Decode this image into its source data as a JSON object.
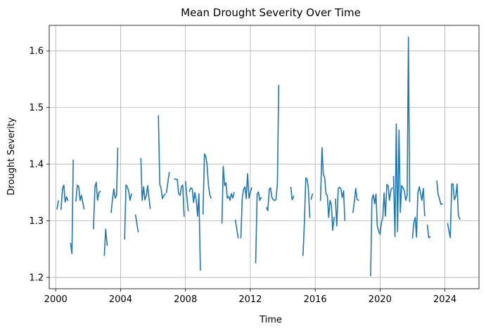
{
  "chart_data": {
    "type": "line",
    "title": "Mean Drought Severity Over Time",
    "xlabel": "Time",
    "ylabel": "Drought Severity",
    "xlim": [
      1999.6,
      2026.1
    ],
    "ylim": [
      1.18,
      1.645
    ],
    "x_ticks": [
      2000,
      2004,
      2008,
      2012,
      2016,
      2020,
      2024
    ],
    "y_ticks": [
      1.2,
      1.3,
      1.4,
      1.5,
      1.6
    ],
    "x_tick_labels": [
      "2000",
      "2004",
      "2008",
      "2012",
      "2016",
      "2020",
      "2024"
    ],
    "y_tick_labels": [
      "1.2",
      "1.3",
      "1.4",
      "1.5",
      "1.6"
    ],
    "grid": true,
    "line_color": "#1f77b4",
    "series": [
      {
        "segments": [
          {
            "x": [
              2000.08,
              2000.17
            ],
            "y": [
              1.321,
              1.335
            ]
          },
          {
            "x": [
              2000.33,
              2000.42,
              2000.5,
              2000.58,
              2000.67,
              2000.75
            ],
            "y": [
              1.32,
              1.357,
              1.363,
              1.333,
              1.342,
              1.336
            ]
          },
          {
            "x": [
              2000.92,
              2001.0,
              2001.08
            ],
            "y": [
              1.26,
              1.242,
              1.407
            ]
          },
          {
            "x": [
              2001.25,
              2001.33,
              2001.42,
              2001.5,
              2001.58,
              2001.67,
              2001.75
            ],
            "y": [
              1.335,
              1.363,
              1.36,
              1.336,
              1.345,
              1.332,
              1.321
            ]
          },
          {
            "x": [
              2002.33,
              2002.42,
              2002.5,
              2002.58,
              2002.67,
              2002.75
            ],
            "y": [
              1.286,
              1.36,
              1.368,
              1.336,
              1.35,
              1.352
            ]
          },
          {
            "x": [
              2003.0,
              2003.08,
              2003.17
            ],
            "y": [
              1.239,
              1.285,
              1.257
            ]
          },
          {
            "x": [
              2003.42,
              2003.5,
              2003.58,
              2003.67,
              2003.75,
              2003.83
            ],
            "y": [
              1.315,
              1.338,
              1.356,
              1.34,
              1.345,
              1.428
            ]
          },
          {
            "x": [
              2004.25,
              2004.33,
              2004.42,
              2004.5,
              2004.58,
              2004.67
            ],
            "y": [
              1.268,
              1.363,
              1.36,
              1.352,
              1.336,
              1.347
            ]
          },
          {
            "x": [
              2004.92,
              2005.08
            ],
            "y": [
              1.31,
              1.281
            ]
          },
          {
            "x": [
              2005.25,
              2005.33,
              2005.42,
              2005.5,
              2005.58,
              2005.67,
              2005.75,
              2005.83
            ],
            "y": [
              1.41,
              1.336,
              1.36,
              1.337,
              1.344,
              1.362,
              1.34,
              1.322
            ]
          },
          {
            "x": [
              2006.33,
              2006.42,
              2006.5,
              2006.58,
              2006.67,
              2006.75
            ],
            "y": [
              1.485,
              1.364,
              1.357,
              1.339,
              1.345,
              1.347
            ]
          },
          {
            "x": [
              2006.83,
              2007.0
            ],
            "y": [
              1.35,
              1.385
            ]
          },
          {
            "x": [
              2007.33,
              2007.42,
              2007.5,
              2007.58,
              2007.67,
              2007.75,
              2007.83,
              2007.92
            ],
            "y": [
              1.374,
              1.373,
              1.373,
              1.348,
              1.345,
              1.36,
              1.363,
              1.308
            ]
          },
          {
            "x": [
              2008.0,
              2008.08,
              2008.17
            ],
            "y": [
              1.369,
              1.345,
              1.318
            ]
          },
          {
            "x": [
              2008.25,
              2008.33,
              2008.42,
              2008.5,
              2008.58,
              2008.67,
              2008.75,
              2008.83,
              2008.92
            ],
            "y": [
              1.352,
              1.358,
              1.356,
              1.332,
              1.35,
              1.336,
              1.308,
              1.348,
              1.213
            ]
          },
          {
            "x": [
              2009.08,
              2009.17,
              2009.25,
              2009.33,
              2009.42,
              2009.5,
              2009.58
            ],
            "y": [
              1.312,
              1.418,
              1.414,
              1.4,
              1.362,
              1.346,
              1.34
            ]
          },
          {
            "x": [
              2010.25,
              2010.33,
              2010.42,
              2010.5,
              2010.58,
              2010.67,
              2010.75,
              2010.83,
              2010.92,
              2011.0
            ],
            "y": [
              1.296,
              1.396,
              1.362,
              1.367,
              1.34,
              1.343,
              1.336,
              1.348,
              1.34,
              1.35
            ]
          },
          {
            "x": [
              2011.08,
              2011.25
            ],
            "y": [
              1.301,
              1.27
            ]
          },
          {
            "x": [
              2011.42,
              2011.5,
              2011.58,
              2011.67,
              2011.75,
              2011.83,
              2011.92,
              2012.0,
              2012.08
            ],
            "y": [
              1.27,
              1.339,
              1.355,
              1.36,
              1.339,
              1.383,
              1.34,
              1.35,
              1.358
            ]
          },
          {
            "x": [
              2012.33,
              2012.42,
              2012.5,
              2012.58,
              2012.67
            ],
            "y": [
              1.226,
              1.347,
              1.351,
              1.336,
              1.341
            ]
          },
          {
            "x": [
              2013.0,
              2013.08,
              2013.17,
              2013.25,
              2013.33,
              2013.42,
              2013.5,
              2013.58,
              2013.67,
              2013.75
            ],
            "y": [
              1.323,
              1.318,
              1.356,
              1.358,
              1.341,
              1.337,
              1.336,
              1.337,
              1.365,
              1.539
            ]
          },
          {
            "x": [
              2014.5,
              2014.58,
              2014.67
            ],
            "y": [
              1.359,
              1.337,
              1.343
            ]
          },
          {
            "x": [
              2015.25,
              2015.33,
              2015.42,
              2015.5,
              2015.58,
              2015.67
            ],
            "y": [
              1.239,
              1.294,
              1.376,
              1.373,
              1.358,
              1.306
            ]
          },
          {
            "x": [
              2015.75,
              2015.83
            ],
            "y": [
              1.338,
              1.347
            ]
          },
          {
            "x": [
              2016.33,
              2016.42,
              2016.5,
              2016.58,
              2016.67,
              2016.75,
              2016.83,
              2016.92,
              2017.0,
              2017.08,
              2017.17
            ],
            "y": [
              1.336,
              1.429,
              1.382,
              1.377,
              1.347,
              1.345,
              1.306,
              1.336,
              1.328,
              1.283,
              1.306
            ]
          },
          {
            "x": [
              2017.25,
              2017.33,
              2017.42,
              2017.5,
              2017.58,
              2017.67,
              2017.75,
              2017.83
            ],
            "y": [
              1.338,
              1.291,
              1.357,
              1.359,
              1.357,
              1.341,
              1.353,
              1.301
            ]
          },
          {
            "x": [
              2018.33,
              2018.42,
              2018.5,
              2018.58,
              2018.67
            ],
            "y": [
              1.315,
              1.335,
              1.357,
              1.338,
              1.336
            ]
          },
          {
            "x": [
              2019.42,
              2019.5,
              2019.58,
              2019.67,
              2019.75,
              2019.83,
              2019.92,
              2020.0,
              2020.08,
              2020.17,
              2020.25,
              2020.33,
              2020.42,
              2020.5,
              2020.58,
              2020.67,
              2020.75
            ],
            "y": [
              1.203,
              1.338,
              1.346,
              1.33,
              1.347,
              1.291,
              1.281,
              1.276,
              1.296,
              1.306,
              1.349,
              1.308,
              1.364,
              1.362,
              1.336,
              1.354,
              1.358
            ]
          },
          {
            "x": [
              2020.83,
              2020.92,
              2021.0,
              2021.08,
              2021.17,
              2021.25,
              2021.33,
              2021.42,
              2021.5,
              2021.58,
              2021.67,
              2021.75,
              2021.83
            ],
            "y": [
              1.378,
              1.272,
              1.471,
              1.281,
              1.46,
              1.315,
              1.362,
              1.358,
              1.353,
              1.336,
              1.345,
              1.624,
              1.334
            ]
          },
          {
            "x": [
              2022.0,
              2022.08,
              2022.17,
              2022.25,
              2022.33,
              2022.42,
              2022.5,
              2022.58,
              2022.67,
              2022.75
            ],
            "y": [
              1.27,
              1.296,
              1.306,
              1.271,
              1.349,
              1.36,
              1.348,
              1.336,
              1.357,
              1.309
            ]
          },
          {
            "x": [
              2022.92,
              2023.0,
              2023.08
            ],
            "y": [
              1.292,
              1.27,
              1.272
            ]
          },
          {
            "x": [
              2023.5,
              2023.58,
              2023.67,
              2023.75,
              2023.83
            ],
            "y": [
              1.37,
              1.347,
              1.338,
              1.329,
              1.33
            ]
          },
          {
            "x": [
              2024.17,
              2024.25,
              2024.33,
              2024.42,
              2024.5,
              2024.58,
              2024.67,
              2024.75,
              2024.83,
              2024.92
            ],
            "y": [
              1.295,
              1.282,
              1.27,
              1.365,
              1.365,
              1.337,
              1.343,
              1.365,
              1.309,
              1.303
            ]
          }
        ]
      }
    ]
  }
}
